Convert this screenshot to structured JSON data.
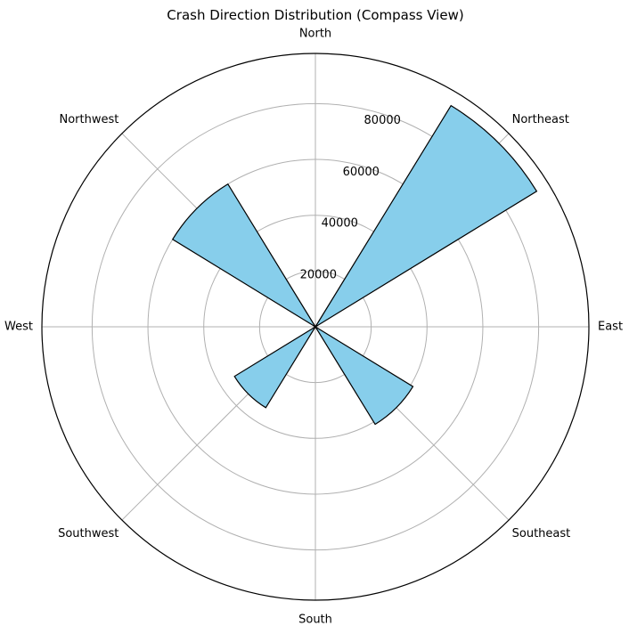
{
  "chart_data": {
    "type": "bar",
    "subtype": "polar",
    "title": "Crash Direction Distribution (Compass View)",
    "categories": [
      "North",
      "Northeast",
      "East",
      "Southeast",
      "South",
      "Southwest",
      "West",
      "Northwest"
    ],
    "values": [
      0,
      93000,
      0,
      41000,
      0,
      34000,
      0,
      60000
    ],
    "radial_ticks": [
      20000,
      40000,
      60000,
      80000
    ],
    "rlim": [
      0,
      98000
    ],
    "grid": true,
    "colors": {
      "bar_fill": "#87ceeb",
      "bar_edge": "#000000",
      "grid": "#b0b0b0",
      "outline": "#000000"
    }
  }
}
